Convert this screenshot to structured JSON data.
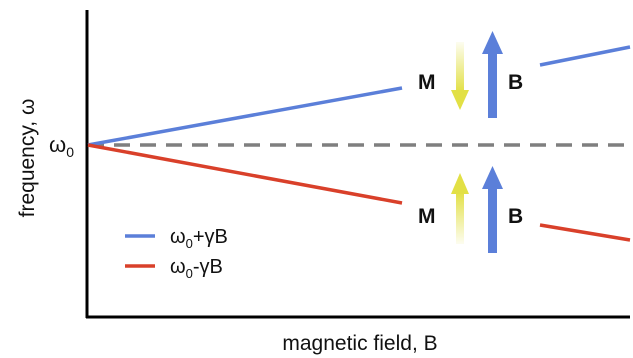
{
  "axes": {
    "xlabel": "magnetic field, B",
    "ylabel": "frequency, ω",
    "y_tick_symbol": "ω",
    "y_tick_subscript": "0"
  },
  "chart_data": {
    "type": "line",
    "xlabel": "magnetic field, B",
    "ylabel": "frequency, ω",
    "series": [
      {
        "name": "ω0+γB",
        "color": "#5b7fd9",
        "relation": "omega0 + gamma*B"
      },
      {
        "name": "ω0-γB",
        "color": "#d9402a",
        "relation": "omega0 - gamma*B"
      }
    ],
    "reference_line": {
      "label": "ω0",
      "style": "dashed",
      "color": "#7f7f7f"
    }
  },
  "legend": {
    "items": [
      {
        "prefix": "ω",
        "sub": "0",
        "suffix": "+γB",
        "color": "#5b7fd9"
      },
      {
        "prefix": "ω",
        "sub": "0",
        "suffix": "-γB",
        "color": "#d9402a"
      }
    ]
  },
  "annotations": {
    "upper": {
      "m_label": "M",
      "b_label": "B",
      "m_direction": "down",
      "b_direction": "up"
    },
    "lower": {
      "m_label": "M",
      "b_label": "B",
      "m_direction": "up",
      "b_direction": "up"
    }
  },
  "colors": {
    "upper_line": "#5b7fd9",
    "lower_line": "#d9402a",
    "dashed": "#7f7f7f",
    "b_arrow": "#5b7fd9",
    "m_arrow": "#e2e045",
    "axis": "#000000"
  }
}
